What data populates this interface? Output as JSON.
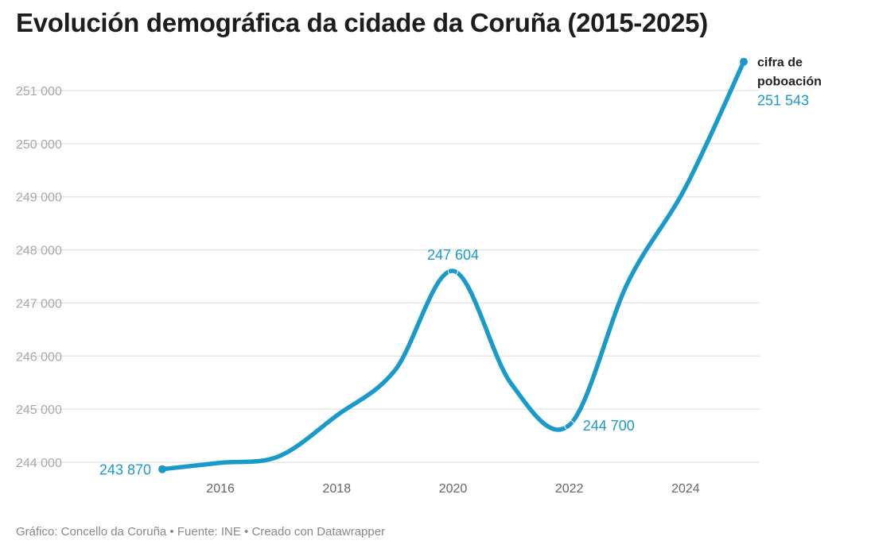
{
  "chart_data": {
    "type": "line",
    "title": "Evolución demográfica da cidade da Coruña (2015-2025)",
    "xlabel": "",
    "ylabel": "",
    "x": [
      2015,
      2016,
      2017,
      2018,
      2019,
      2020,
      2021,
      2022,
      2023,
      2024,
      2025
    ],
    "series": [
      {
        "name": "cifra de poboación",
        "values": [
          243870,
          243990,
          244110,
          244880,
          245730,
          247604,
          245480,
          244700,
          247370,
          249180,
          251543
        ]
      }
    ],
    "xticks": [
      "2016",
      "2018",
      "2020",
      "2022",
      "2024"
    ],
    "yticks": [
      "244 000",
      "245 000",
      "246 000",
      "247 000",
      "248 000",
      "249 000",
      "250 000",
      "251 000"
    ],
    "ylim": [
      244000,
      251000
    ],
    "xlim": [
      2015,
      2025
    ],
    "grid": true,
    "annotations": [
      {
        "x": 2015,
        "text": "243 870"
      },
      {
        "x": 2020,
        "text": "247 604"
      },
      {
        "x": 2022,
        "text": "244 700"
      },
      {
        "x": 2025,
        "text": "251 543"
      }
    ],
    "series_label": "cifra de poboación",
    "series_label_lines": [
      "cifra de",
      "poboación"
    ],
    "color": "#1a9ac9"
  },
  "footer": "Gráfico: Concello da Coruña • Fuente: INE • Creado con Datawrapper"
}
